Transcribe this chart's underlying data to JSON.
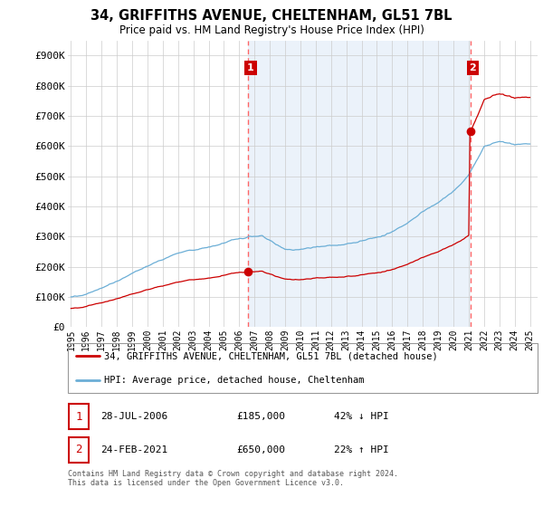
{
  "title": "34, GRIFFITHS AVENUE, CHELTENHAM, GL51 7BL",
  "subtitle": "Price paid vs. HM Land Registry's House Price Index (HPI)",
  "ylim": [
    0,
    950000
  ],
  "yticks": [
    0,
    100000,
    200000,
    300000,
    400000,
    500000,
    600000,
    700000,
    800000,
    900000
  ],
  "ytick_labels": [
    "£0",
    "£100K",
    "£200K",
    "£300K",
    "£400K",
    "£500K",
    "£600K",
    "£700K",
    "£800K",
    "£900K"
  ],
  "hpi_color": "#6baed6",
  "price_color": "#cc0000",
  "dot_color": "#cc0000",
  "annotation_box_color": "#cc0000",
  "vline_color": "#ff6666",
  "shade_color": "#deeaf7",
  "point1_year": 2006.58,
  "point1_price": 185000,
  "point2_year": 2021.12,
  "point2_price": 650000,
  "legend_label1": "34, GRIFFITHS AVENUE, CHELTENHAM, GL51 7BL (detached house)",
  "legend_label2": "HPI: Average price, detached house, Cheltenham",
  "table_row1": [
    "1",
    "28-JUL-2006",
    "£185,000",
    "42% ↓ HPI"
  ],
  "table_row2": [
    "2",
    "24-FEB-2021",
    "£650,000",
    "22% ↑ HPI"
  ],
  "footnote": "Contains HM Land Registry data © Crown copyright and database right 2024.\nThis data is licensed under the Open Government Licence v3.0.",
  "background_color": "#ffffff",
  "grid_color": "#cccccc",
  "start_year": 1995,
  "end_year": 2025,
  "xlim_left": 1994.8,
  "xlim_right": 2025.5
}
